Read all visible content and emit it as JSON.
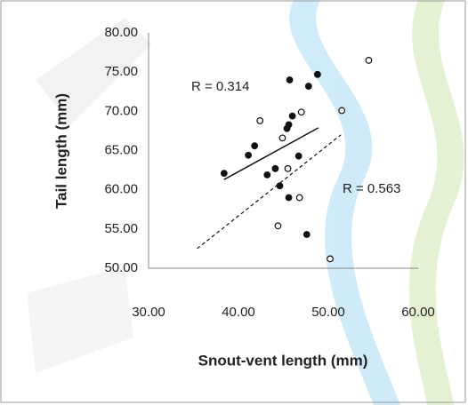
{
  "chart_data": {
    "type": "scatter",
    "x_label": "Snout-vent length (mm)",
    "y_label": "Tail length (mm)",
    "xlim": [
      30,
      60
    ],
    "ylim": [
      50,
      80
    ],
    "xticks": [
      {
        "value": 30,
        "label": "30.00"
      },
      {
        "value": 40,
        "label": "40.00"
      },
      {
        "value": 50,
        "label": "50.00"
      },
      {
        "value": 60,
        "label": "60.00"
      }
    ],
    "yticks": [
      {
        "value": 50,
        "label": "50.00"
      },
      {
        "value": 55,
        "label": "55.00"
      },
      {
        "value": 60,
        "label": "60.00"
      },
      {
        "value": 65,
        "label": "65.00"
      },
      {
        "value": 70,
        "label": "70.00"
      },
      {
        "value": 75,
        "label": "75.00"
      },
      {
        "value": 80,
        "label": "80.00"
      }
    ],
    "grid": false,
    "series": [
      {
        "marker": "filled",
        "color": "#111111",
        "x": [
          38.4,
          41.1,
          41.8,
          43.2,
          44.1,
          44.6,
          45.7,
          45.4,
          45.6,
          46.0,
          45.6,
          46.7,
          47.8,
          48.8,
          47.6
        ],
        "values": [
          62.1,
          64.4,
          65.6,
          61.9,
          62.7,
          60.5,
          74.0,
          67.8,
          68.3,
          69.4,
          59.0,
          64.3,
          73.2,
          74.7,
          54.3
        ]
      },
      {
        "marker": "open",
        "color": "#111111",
        "x": [
          42.4,
          44.9,
          47.0,
          45.5,
          46.8,
          44.4,
          51.5,
          54.5,
          50.2
        ],
        "values": [
          68.8,
          66.6,
          69.9,
          62.7,
          59.0,
          55.4,
          70.1,
          76.5,
          51.2
        ]
      }
    ],
    "trendlines": [
      {
        "dash": false,
        "color": "#111111",
        "x": [
          38.4,
          48.9
        ],
        "values": [
          61.3,
          67.9
        ]
      },
      {
        "dash": true,
        "color": "#111111",
        "x": [
          35.4,
          51.4
        ],
        "values": [
          52.5,
          67.0
        ]
      }
    ],
    "annotations": [
      "R = 0.314",
      "R = 0.563"
    ]
  }
}
